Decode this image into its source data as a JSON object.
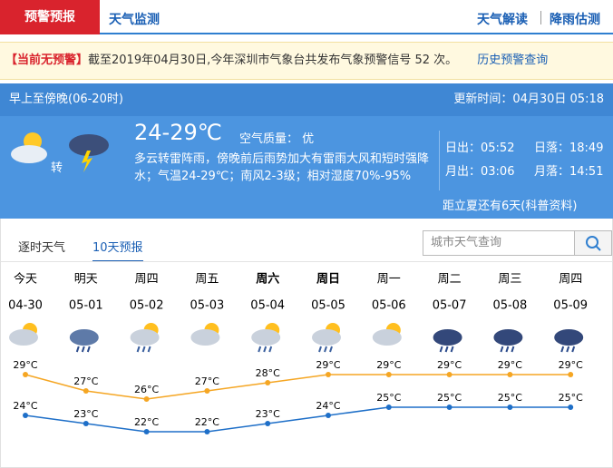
{
  "tabs": {
    "active": "预警预报",
    "monitor": "天气监测",
    "right": [
      "天气解读",
      "降雨估测"
    ]
  },
  "alert": {
    "status": "【当前无预警】",
    "text": "截至2019年04月30日,今年深圳市气象台共发布气象预警信号 52 次。",
    "link": "历史预警查询"
  },
  "today": {
    "period": "早上至傍晚(06-20时)",
    "update": "更新时间：04月30日 05:18",
    "turn": "转",
    "temp": "24-29℃",
    "air": "空气质量： 优",
    "desc": "多云转雷阵雨，傍晚前后雨势加大有雷雨大风和短时强降水；气温24-29℃；南风2-3级；相对湿度70%-95%",
    "sunrise": "日出：05:52",
    "sunset": "日落：18:49",
    "moonrise": "月出：03:06",
    "moonset": "月落：14:51",
    "solar": "距立夏还有6天(科普资料)"
  },
  "forecast_tabs": [
    "逐时天气",
    "10天预报"
  ],
  "search": {
    "placeholder": "城市天气查询"
  },
  "forecast": {
    "days": [
      "今天",
      "明天",
      "周四",
      "周五",
      "周六",
      "周日",
      "周一",
      "周二",
      "周三",
      "周四"
    ],
    "dates": [
      "04-30",
      "05-01",
      "05-02",
      "05-03",
      "05-04",
      "05-05",
      "05-06",
      "05-07",
      "05-08",
      "05-09"
    ],
    "high": {
      "color": "#f5a623",
      "values": [
        29,
        27,
        26,
        27,
        28,
        29,
        29,
        29,
        29,
        29
      ],
      "value_labels": [
        "29°C",
        "27°C",
        "26°C",
        "27°C",
        "28°C",
        "29°C",
        "29°C",
        "29°C",
        "29°C",
        "29°C"
      ]
    },
    "low": {
      "color": "#1e6fc8",
      "values": [
        24,
        23,
        22,
        22,
        23,
        24,
        25,
        25,
        25,
        25
      ],
      "value_labels": [
        "24°C",
        "23°C",
        "22°C",
        "22°C",
        "23°C",
        "24°C",
        "25°C",
        "25°C",
        "25°C",
        "25°C"
      ]
    }
  }
}
